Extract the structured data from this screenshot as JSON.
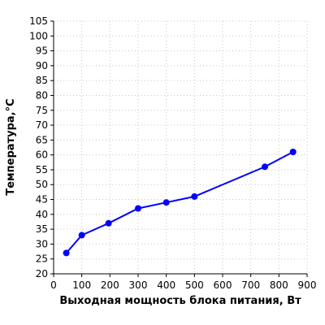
{
  "chart_data": {
    "type": "line",
    "title": "",
    "xlabel": "Выходная мощность блока питания, Вт",
    "ylabel": "Температура,°C",
    "xlim": [
      0,
      900
    ],
    "ylim": [
      20,
      105
    ],
    "x_ticks": [
      0,
      100,
      200,
      300,
      400,
      500,
      600,
      700,
      800,
      900
    ],
    "y_ticks": [
      20,
      25,
      30,
      35,
      40,
      45,
      50,
      55,
      60,
      65,
      70,
      75,
      80,
      85,
      90,
      95,
      100,
      105
    ],
    "x_tick_labels": [
      "0",
      "100",
      "200",
      "300",
      "400",
      "500",
      "600",
      "700",
      "800",
      "900"
    ],
    "y_tick_labels": [
      "20",
      "25",
      "30",
      "35",
      "40",
      "45",
      "50",
      "55",
      "60",
      "65",
      "70",
      "75",
      "80",
      "85",
      "90",
      "95",
      "100",
      "105"
    ],
    "grid": true,
    "series": [
      {
        "x": [
          45,
          100,
          195,
          300,
          400,
          500,
          750,
          850
        ],
        "y": [
          27,
          33,
          37,
          42,
          44,
          46,
          56,
          61
        ],
        "color": "#0000ff"
      }
    ]
  }
}
